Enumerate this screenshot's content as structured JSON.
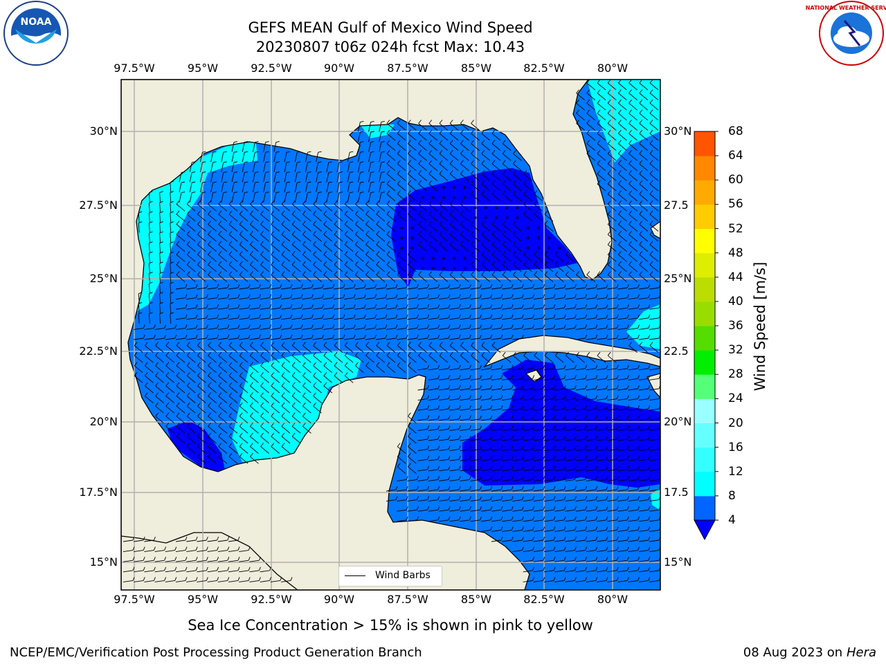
{
  "title": {
    "line1": "GEFS MEAN Gulf of Mexico Wind Speed",
    "line2": "20230807 t06z 024h fcst   Max: 10.43"
  },
  "lon_ticks": [
    "97.5°W",
    "95°W",
    "92.5°W",
    "90°W",
    "87.5°W",
    "85°W",
    "82.5°W",
    "80°W"
  ],
  "lat_ticks": [
    "30°N",
    "27.5°N",
    "25°N",
    "22.5°N",
    "20°N",
    "17.5°N",
    "15°N"
  ],
  "lat_ticks_right": [
    "30°N",
    "27.5",
    "25°N",
    "22.5",
    "20°N",
    "17.5",
    "15°N"
  ],
  "colorbar": {
    "title": "Wind Speed [m/s]",
    "levels": [
      "4",
      "8",
      "12",
      "16",
      "20",
      "24",
      "28",
      "32",
      "36",
      "40",
      "44",
      "48",
      "52",
      "56",
      "60",
      "64",
      "68"
    ],
    "colors": [
      "#0066ff",
      "#00ffff",
      "#33ffff",
      "#66ffff",
      "#99ffff",
      "#55ff77",
      "#00ee00",
      "#55dd00",
      "#99dd00",
      "#bbdd00",
      "#ddee00",
      "#ffff00",
      "#ffcc00",
      "#ffaa00",
      "#ff8800",
      "#ff5500",
      "#ff2200",
      "#ff0000"
    ],
    "under_color": "#0000ff"
  },
  "legend": {
    "label": "Wind Barbs"
  },
  "ice_note": "Sea Ice Concentration > 15% is shown in pink to yellow",
  "footer": {
    "left": "NCEP/EMC/Verification Post Processing Product Generation Branch",
    "date": "08 Aug 2023 on",
    "machine": "Hera"
  },
  "logos": {
    "left": "NOAA",
    "right": "NATIONAL WEATHER SERVICE"
  },
  "colors": {
    "land": "#efeddb",
    "lvl_0_4": "#0000ff",
    "lvl_4_8": "#0077ff",
    "lvl_8_12": "#00ffff",
    "grid": "#b0b0b0"
  }
}
